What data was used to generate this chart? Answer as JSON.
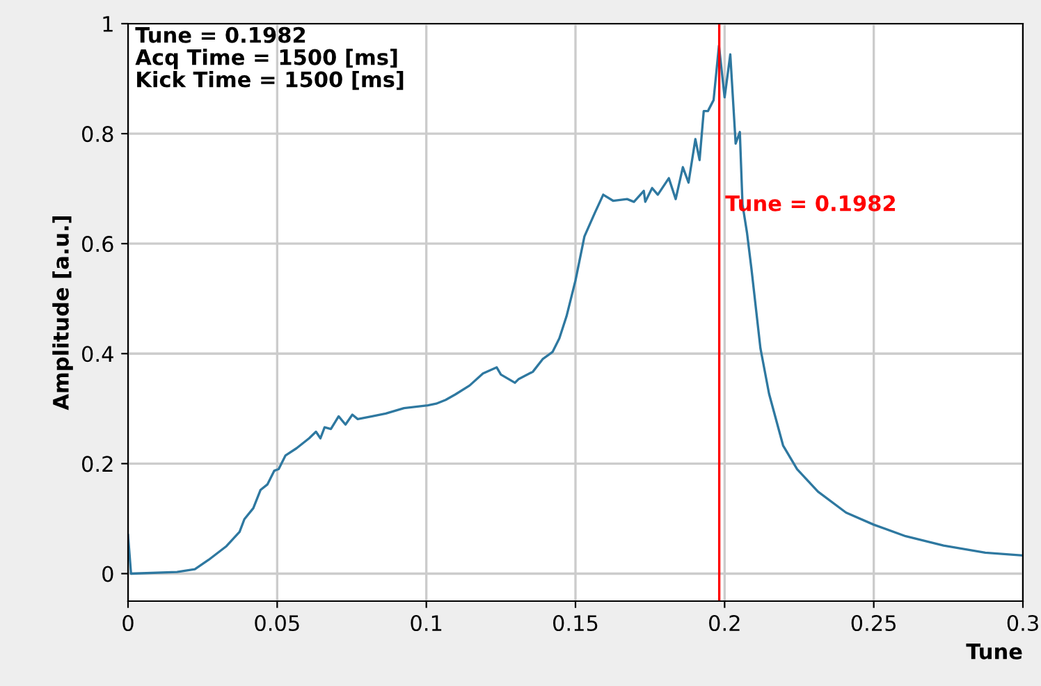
{
  "chart_data": {
    "type": "line",
    "xlabel": "Tune",
    "ylabel": "Amplitude [a.u.]",
    "xlim": [
      0,
      0.3
    ],
    "xticks": [
      0,
      0.05,
      0.1,
      0.15,
      0.2,
      0.25,
      0.3
    ],
    "ylim": [
      -0.05,
      1
    ],
    "yticks": [
      0,
      0.2,
      0.4,
      0.6,
      0.8,
      1
    ],
    "grid": true,
    "annotations": [
      "Tune = 0.1982\nAcq Time = 1500 [ms]\nKick Time = 1500 [ms]"
    ],
    "ref_lines": [
      {
        "axis": "x",
        "value": 0.1982,
        "label": "Tune = 0.1982",
        "color": "#ff0000"
      }
    ],
    "series": [
      {
        "color": "#2e78a0",
        "x": [
          0,
          0.001,
          0.0164,
          0.0224,
          0.027,
          0.033,
          0.0374,
          0.039,
          0.042,
          0.0444,
          0.0467,
          0.049,
          0.0505,
          0.0528,
          0.0565,
          0.0607,
          0.063,
          0.0645,
          0.0659,
          0.068,
          0.0706,
          0.0729,
          0.0752,
          0.077,
          0.0818,
          0.0864,
          0.0925,
          0.1005,
          0.1033,
          0.1065,
          0.1098,
          0.1145,
          0.119,
          0.1236,
          0.125,
          0.1297,
          0.131,
          0.1357,
          0.139,
          0.1423,
          0.1446,
          0.147,
          0.15,
          0.153,
          0.1565,
          0.1593,
          0.1626,
          0.1673,
          0.1696,
          0.1729,
          0.1734,
          0.1757,
          0.1776,
          0.1813,
          0.1836,
          0.186,
          0.1879,
          0.1902,
          0.1916,
          0.193,
          0.1944,
          0.1963,
          0.1981,
          0.2,
          0.2019,
          0.2037,
          0.2051,
          0.206,
          0.2075,
          0.209,
          0.212,
          0.2149,
          0.2196,
          0.2243,
          0.2313,
          0.2407,
          0.25,
          0.2607,
          0.2734,
          0.2874,
          0.3
        ],
        "values": [
          0.07,
          0,
          0.003,
          0.008,
          0.025,
          0.05,
          0.076,
          0.099,
          0.119,
          0.152,
          0.162,
          0.187,
          0.19,
          0.215,
          0.228,
          0.246,
          0.258,
          0.246,
          0.266,
          0.263,
          0.286,
          0.271,
          0.289,
          0.281,
          0.286,
          0.291,
          0.301,
          0.306,
          0.309,
          0.316,
          0.326,
          0.342,
          0.364,
          0.375,
          0.362,
          0.347,
          0.354,
          0.367,
          0.39,
          0.403,
          0.428,
          0.468,
          0.533,
          0.613,
          0.656,
          0.689,
          0.678,
          0.681,
          0.676,
          0.696,
          0.676,
          0.701,
          0.689,
          0.719,
          0.681,
          0.739,
          0.711,
          0.79,
          0.752,
          0.841,
          0.841,
          0.861,
          0.96,
          0.866,
          0.944,
          0.782,
          0.803,
          0.671,
          0.62,
          0.554,
          0.41,
          0.327,
          0.233,
          0.19,
          0.149,
          0.111,
          0.089,
          0.068,
          0.051,
          0.038,
          0.033
        ]
      }
    ]
  }
}
